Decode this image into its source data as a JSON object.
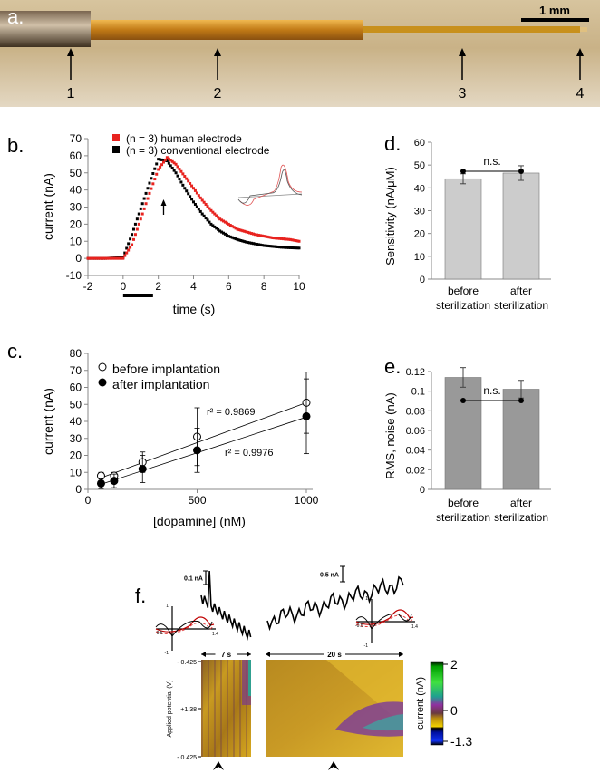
{
  "panel_a": {
    "label": "a.",
    "scale_bar": "1 mm",
    "arrow_labels": [
      "1",
      "2",
      "3",
      "4"
    ]
  },
  "chart_data": [
    {
      "panel": "b.",
      "type": "scatter",
      "xlabel": "time (s)",
      "ylabel": "current (nA)",
      "xlim": [
        -2,
        10
      ],
      "ylim": [
        -10,
        70
      ],
      "xticks": [
        "-2",
        "0",
        "2",
        "4",
        "6",
        "8",
        "10"
      ],
      "yticks": [
        "-10",
        "0",
        "10",
        "20",
        "30",
        "40",
        "50",
        "60",
        "70"
      ],
      "x": [
        -2,
        -1,
        0,
        0.5,
        1,
        1.5,
        2,
        2.5,
        3,
        3.5,
        4,
        4.5,
        5,
        5.5,
        6,
        6.5,
        7,
        7.5,
        8,
        8.5,
        9,
        9.5,
        10
      ],
      "series": [
        {
          "name": "(n = 3) human electrode",
          "color": "#e8231f",
          "values": [
            0,
            0,
            0,
            8,
            23,
            38,
            52,
            59,
            55,
            48,
            41,
            34,
            28,
            23,
            20,
            17,
            15.5,
            14,
            13,
            12,
            11.5,
            11,
            10
          ]
        },
        {
          "name": "(n = 3) conventional electrode",
          "color": "#000000",
          "values": [
            0,
            0,
            0.5,
            14,
            29,
            44,
            58,
            57,
            50,
            41,
            33,
            26,
            20,
            16,
            13,
            11,
            9.5,
            8.5,
            7.5,
            7,
            6.5,
            6.2,
            6
          ]
        }
      ],
      "stimulus_bar": [
        0,
        1.7
      ],
      "arrow_at": 2.3
    },
    {
      "panel": "c.",
      "type": "scatter",
      "xlabel": "[dopamine] (nM)",
      "ylabel": "current (nA)",
      "xlim": [
        0,
        1000
      ],
      "ylim": [
        0,
        80
      ],
      "xticks": [
        "0",
        "500",
        "1000"
      ],
      "yticks": [
        "0",
        "10",
        "20",
        "30",
        "40",
        "50",
        "60",
        "70",
        "80"
      ],
      "x": [
        60,
        120,
        250,
        500,
        1000
      ],
      "series": [
        {
          "name": "before implantation",
          "marker": "open",
          "values": [
            8,
            8,
            16,
            31,
            51
          ],
          "errors": [
            2,
            2,
            6,
            17,
            18
          ],
          "fit": [
            4,
            0.047
          ],
          "r2": "r² = 0.9869"
        },
        {
          "name": "after implantation",
          "marker": "filled",
          "values": [
            3.5,
            5,
            12,
            23,
            43
          ],
          "errors": [
            3,
            4,
            8,
            13,
            22
          ],
          "fit": [
            0.5,
            0.042
          ],
          "r2": "r² = 0.9976"
        }
      ]
    },
    {
      "panel": "d.",
      "type": "bar",
      "ylabel": "Sensitivity (nA/μM)",
      "ylim": [
        0,
        60
      ],
      "yticks": [
        "0",
        "10",
        "20",
        "30",
        "40",
        "50",
        "60"
      ],
      "categories": [
        [
          "before",
          "sterilization"
        ],
        [
          "after",
          "sterilization"
        ]
      ],
      "values": [
        44,
        46.5
      ],
      "errors": [
        2.2,
        3.2
      ],
      "color": "#cccccc",
      "annotation": "n.s."
    },
    {
      "panel": "e.",
      "type": "bar",
      "ylabel": "RMS, noise (nA)",
      "ylim": [
        0,
        0.12
      ],
      "yticks": [
        "0",
        "0.02",
        "0.04",
        "0.06",
        "0.08",
        "0.1",
        "0.12"
      ],
      "categories": [
        [
          "before",
          "sterilization"
        ],
        [
          "after",
          "sterilization"
        ]
      ],
      "values": [
        0.114,
        0.102
      ],
      "errors": [
        0.01,
        0.009
      ],
      "color": "#999999",
      "annotation": "n.s."
    },
    {
      "panel": "f.",
      "type": "heatmap",
      "trace_scales": [
        "0.1 nA",
        "0.5 nA"
      ],
      "time_spans": [
        "7 s",
        "20 s"
      ],
      "ylabel": "Applied potential (V)",
      "yticks": [
        "- 0.425",
        "+1.38",
        "- 0.425"
      ],
      "cv_ticks": {
        "y_top": "1",
        "y_bottom": "-1",
        "x_left": "-0.5",
        "x_right": "1.4"
      },
      "colorbar": {
        "label": "current (nA)",
        "ticks": [
          "2",
          "0",
          "-1.3"
        ],
        "range": [
          -1.3,
          2
        ]
      }
    }
  ]
}
